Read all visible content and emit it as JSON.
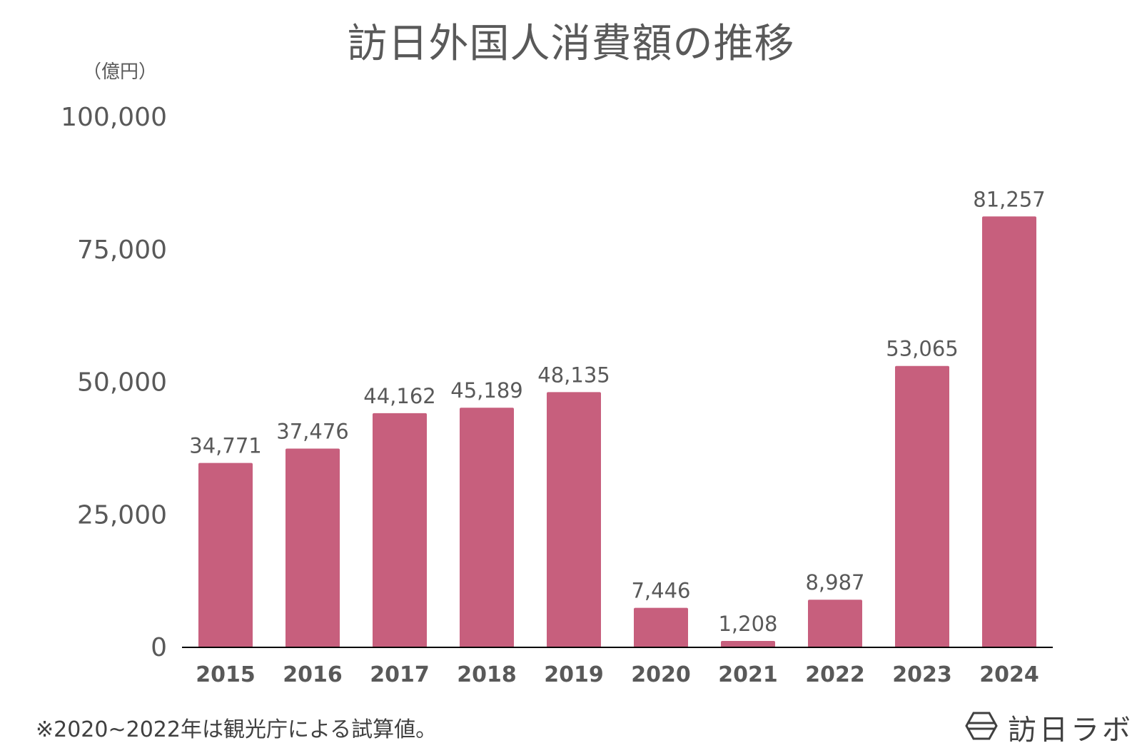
{
  "chart_data": {
    "type": "bar",
    "title": "訪日外国人消費額の推移",
    "unit": "（億円）",
    "categories": [
      "2015",
      "2016",
      "2017",
      "2018",
      "2019",
      "2020",
      "2021",
      "2022",
      "2023",
      "2024"
    ],
    "values": [
      34771,
      37476,
      44162,
      45189,
      48135,
      7446,
      1208,
      8987,
      53065,
      81257
    ],
    "value_labels": [
      "34,771",
      "37,476",
      "44,162",
      "45,189",
      "48,135",
      "7,446",
      "1,208",
      "8,987",
      "53,065",
      "81,257"
    ],
    "yticks": [
      "0",
      "25,000",
      "50,000",
      "75,000",
      "100,000"
    ],
    "ylim": [
      0,
      100000
    ],
    "grid": false,
    "bar_color": "#c75f7d"
  },
  "footnote": "※2020~2022年は観光庁による試算値。",
  "brand": {
    "name": "訪日ラボ",
    "icon": "hexagon-logo-icon"
  }
}
